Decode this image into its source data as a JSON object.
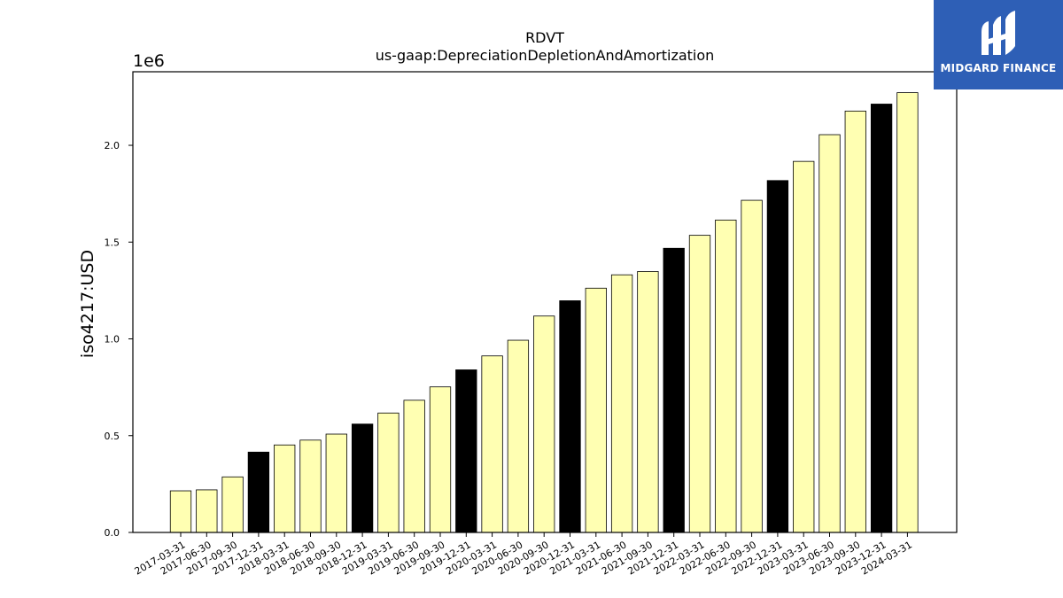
{
  "chart_data": {
    "type": "bar",
    "title": "RDVT",
    "subtitle": "us-gaap:DepreciationDepletionAndAmortization",
    "ylabel": "iso4217:USD",
    "xlabel": "",
    "y_offset_label": "1e6",
    "ylim": [
      0,
      2380000
    ],
    "yticks": [
      0,
      500000,
      1000000,
      1500000,
      2000000
    ],
    "ytick_labels": [
      "0.0",
      "0.5",
      "1.0",
      "1.5",
      "2.0"
    ],
    "grid": false,
    "bar_color": "#ffffb2",
    "highlight_color": "#000000",
    "categories": [
      "2017-03-31",
      "2017-06-30",
      "2017-09-30",
      "2017-12-31",
      "2018-03-31",
      "2018-06-30",
      "2018-09-30",
      "2018-12-31",
      "2019-03-31",
      "2019-06-30",
      "2019-09-30",
      "2019-12-31",
      "2020-03-31",
      "2020-06-30",
      "2020-09-30",
      "2020-12-31",
      "2021-03-31",
      "2021-06-30",
      "2021-09-30",
      "2021-12-31",
      "2022-03-31",
      "2022-06-30",
      "2022-09-30",
      "2022-12-31",
      "2023-03-31",
      "2023-06-30",
      "2023-09-30",
      "2023-12-31",
      "2024-03-31"
    ],
    "values": [
      215000,
      220000,
      287000,
      415000,
      452000,
      477000,
      508000,
      560000,
      617000,
      683000,
      752000,
      840000,
      912000,
      993000,
      1118000,
      1197000,
      1262000,
      1331000,
      1348000,
      1468000,
      1535000,
      1614000,
      1716000,
      1818000,
      1917000,
      2055000,
      2177000,
      2213000,
      2272000
    ],
    "highlighted": [
      false,
      false,
      false,
      true,
      false,
      false,
      false,
      true,
      false,
      false,
      false,
      true,
      false,
      false,
      false,
      true,
      false,
      false,
      false,
      true,
      false,
      false,
      false,
      true,
      false,
      false,
      false,
      true,
      false
    ]
  },
  "logo": {
    "text": "MIDGARD FINANCE",
    "color": "#2e5fb6"
  }
}
